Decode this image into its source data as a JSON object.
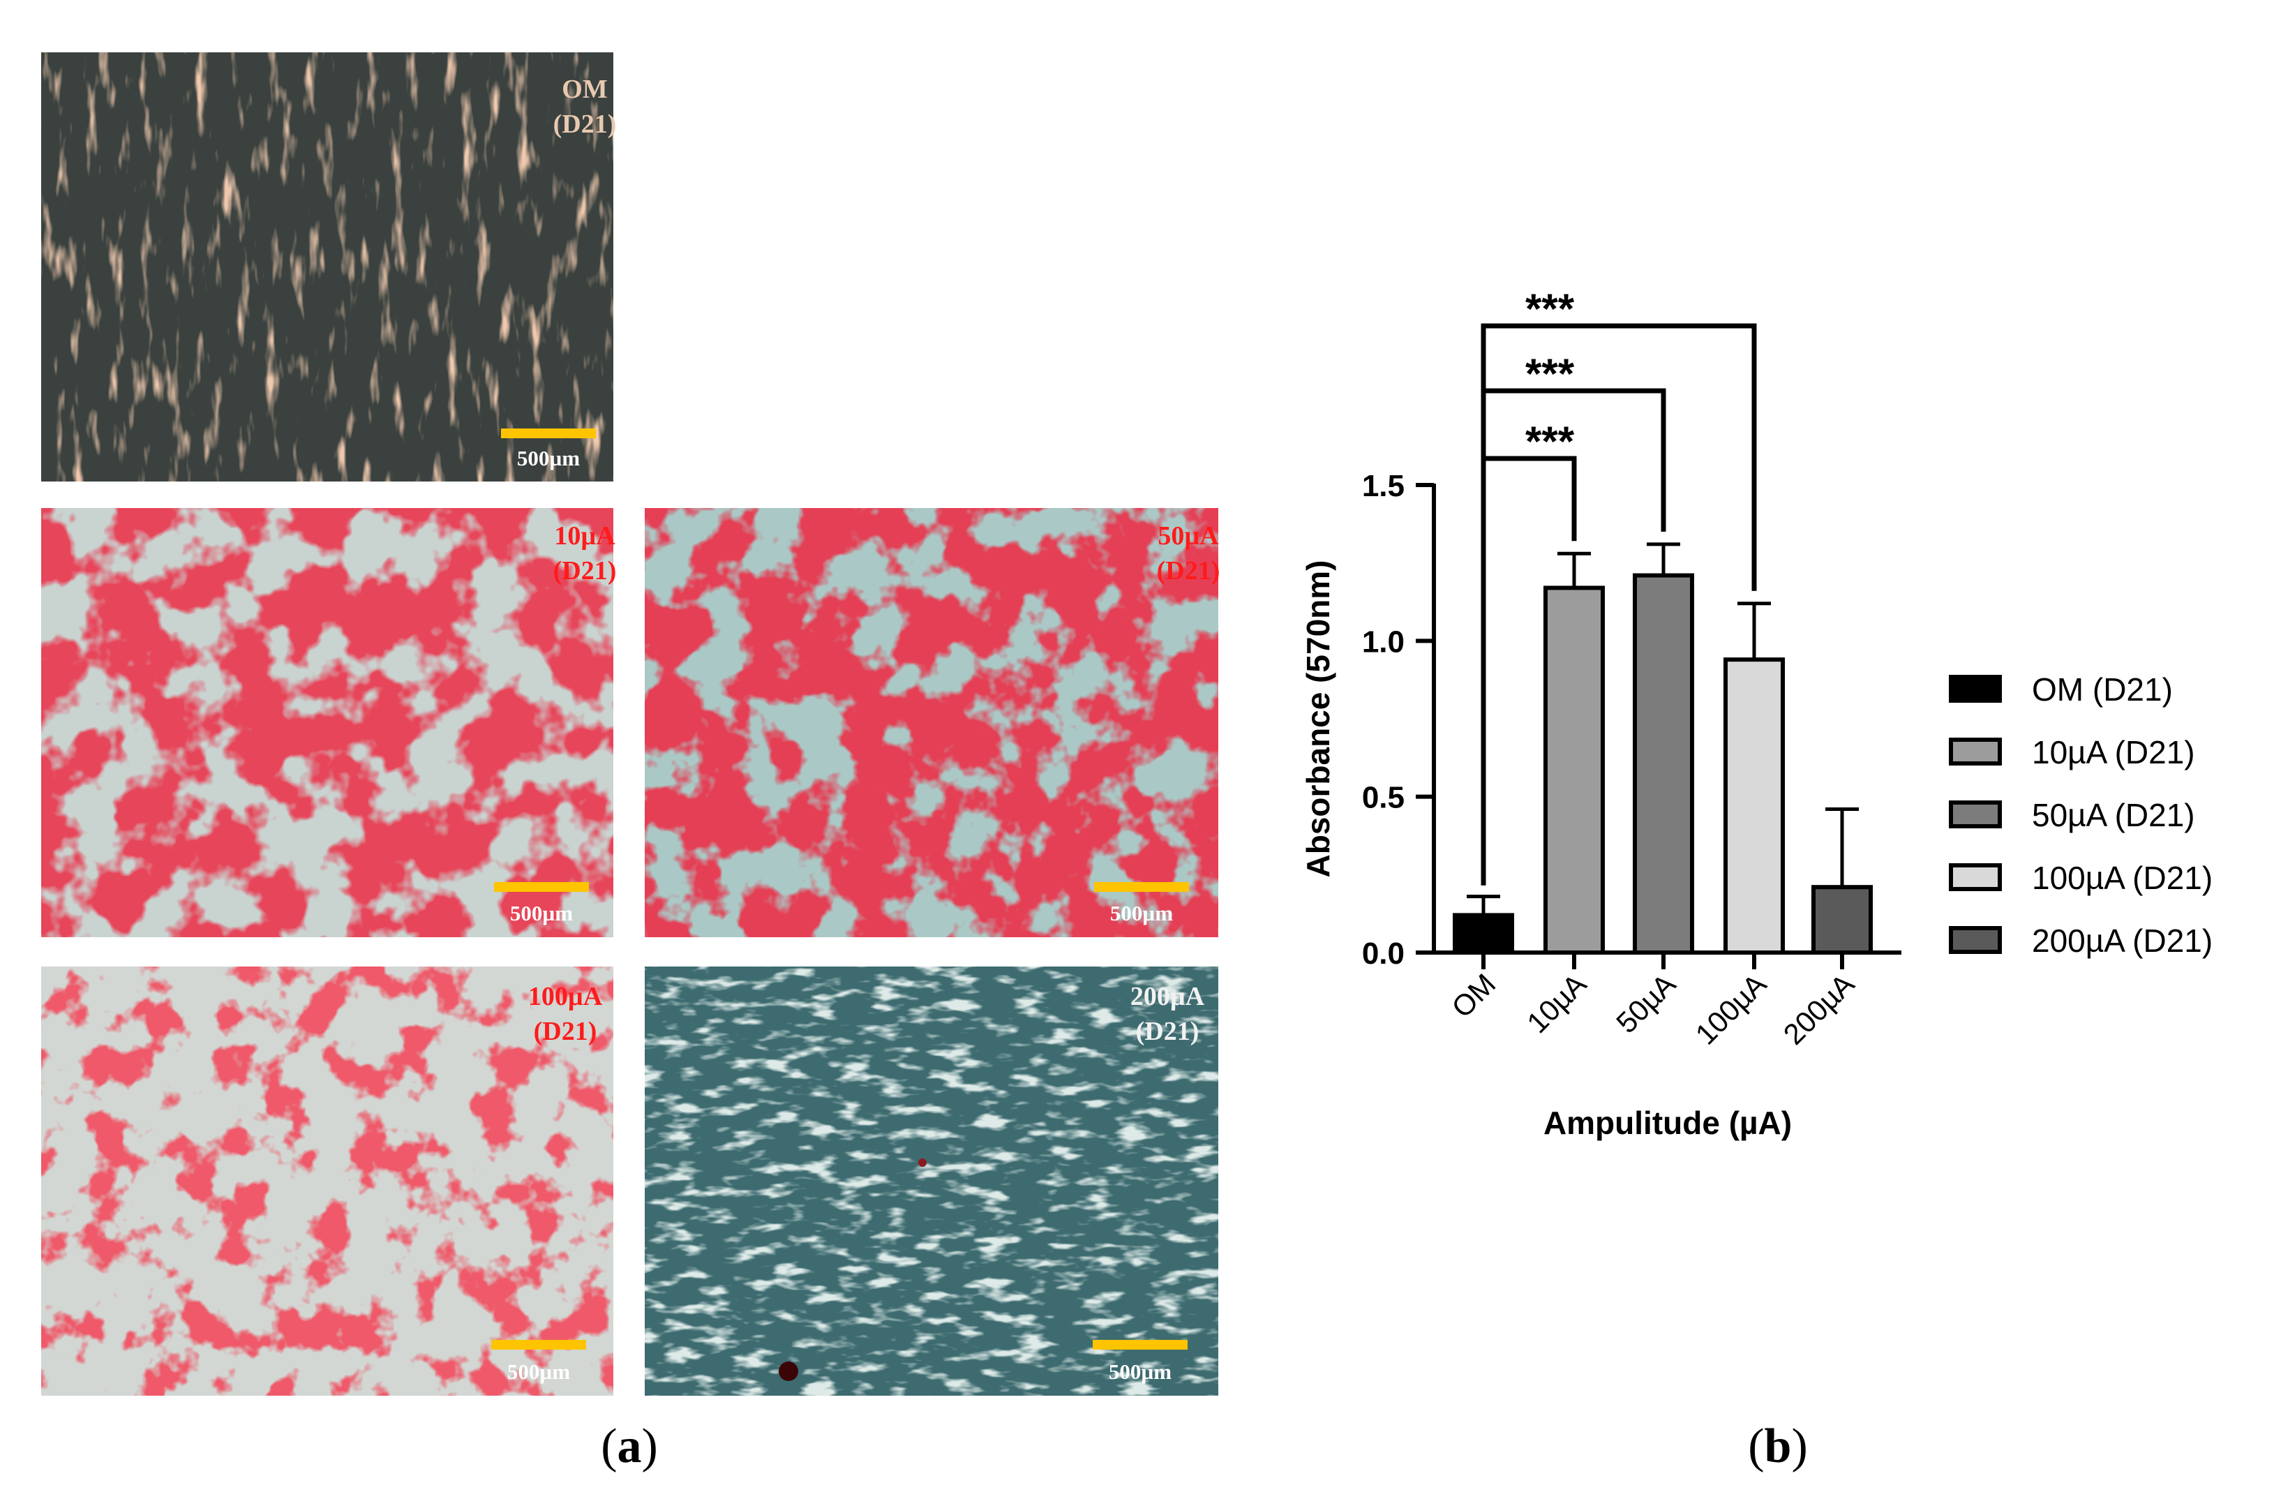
{
  "panel_a": {
    "letter": "a",
    "micrographs": [
      {
        "label": "OM",
        "day": "(D21)",
        "scale_bar": "500µm",
        "stain": "brown"
      },
      {
        "label": "10µA",
        "day": "(D21)",
        "scale_bar": "500µm",
        "stain": "heavy-red"
      },
      {
        "label": "50µA",
        "day": "(D21)",
        "scale_bar": "500µm",
        "stain": "heavy-red"
      },
      {
        "label": "100µA",
        "day": "(D21)",
        "scale_bar": "500µm",
        "stain": "patchy-red"
      },
      {
        "label": "200µA",
        "day": "(D21)",
        "scale_bar": "500µm",
        "stain": "teal"
      }
    ],
    "colors": {
      "om_label": "#e8c9b0",
      "red_label": "#ff1b1b",
      "white_label": "#f2f2f2",
      "scale_bar": "#ffc400"
    }
  },
  "panel_b": {
    "letter": "b",
    "chart_data": {
      "type": "bar",
      "categories": [
        "OM",
        "10µA",
        "50µA",
        "100µA",
        "200µA"
      ],
      "values": [
        0.12,
        1.17,
        1.21,
        0.94,
        0.21
      ],
      "errors": [
        0.06,
        0.11,
        0.1,
        0.18,
        0.25
      ],
      "colors": [
        "#000000",
        "#9c9c9c",
        "#7c7c7c",
        "#d9d9d9",
        "#5a5a5a"
      ],
      "ylim": [
        0,
        1.5
      ],
      "yticks": [
        "0.0",
        "0.5",
        "1.0",
        "1.5"
      ],
      "ylabel": "Absorbance (570nm)",
      "xlabel": "Ampulitude (µA)",
      "legend": [
        "OM (D21)",
        "10µA (D21)",
        "50µA (D21)",
        "100µA (D21)",
        "200µA (D21)"
      ],
      "legend_position": "right",
      "significance": [
        {
          "from": "OM",
          "to": "10µA",
          "label": "***"
        },
        {
          "from": "OM",
          "to": "50µA",
          "label": "***"
        },
        {
          "from": "OM",
          "to": "100µA",
          "label": "***"
        }
      ]
    }
  }
}
